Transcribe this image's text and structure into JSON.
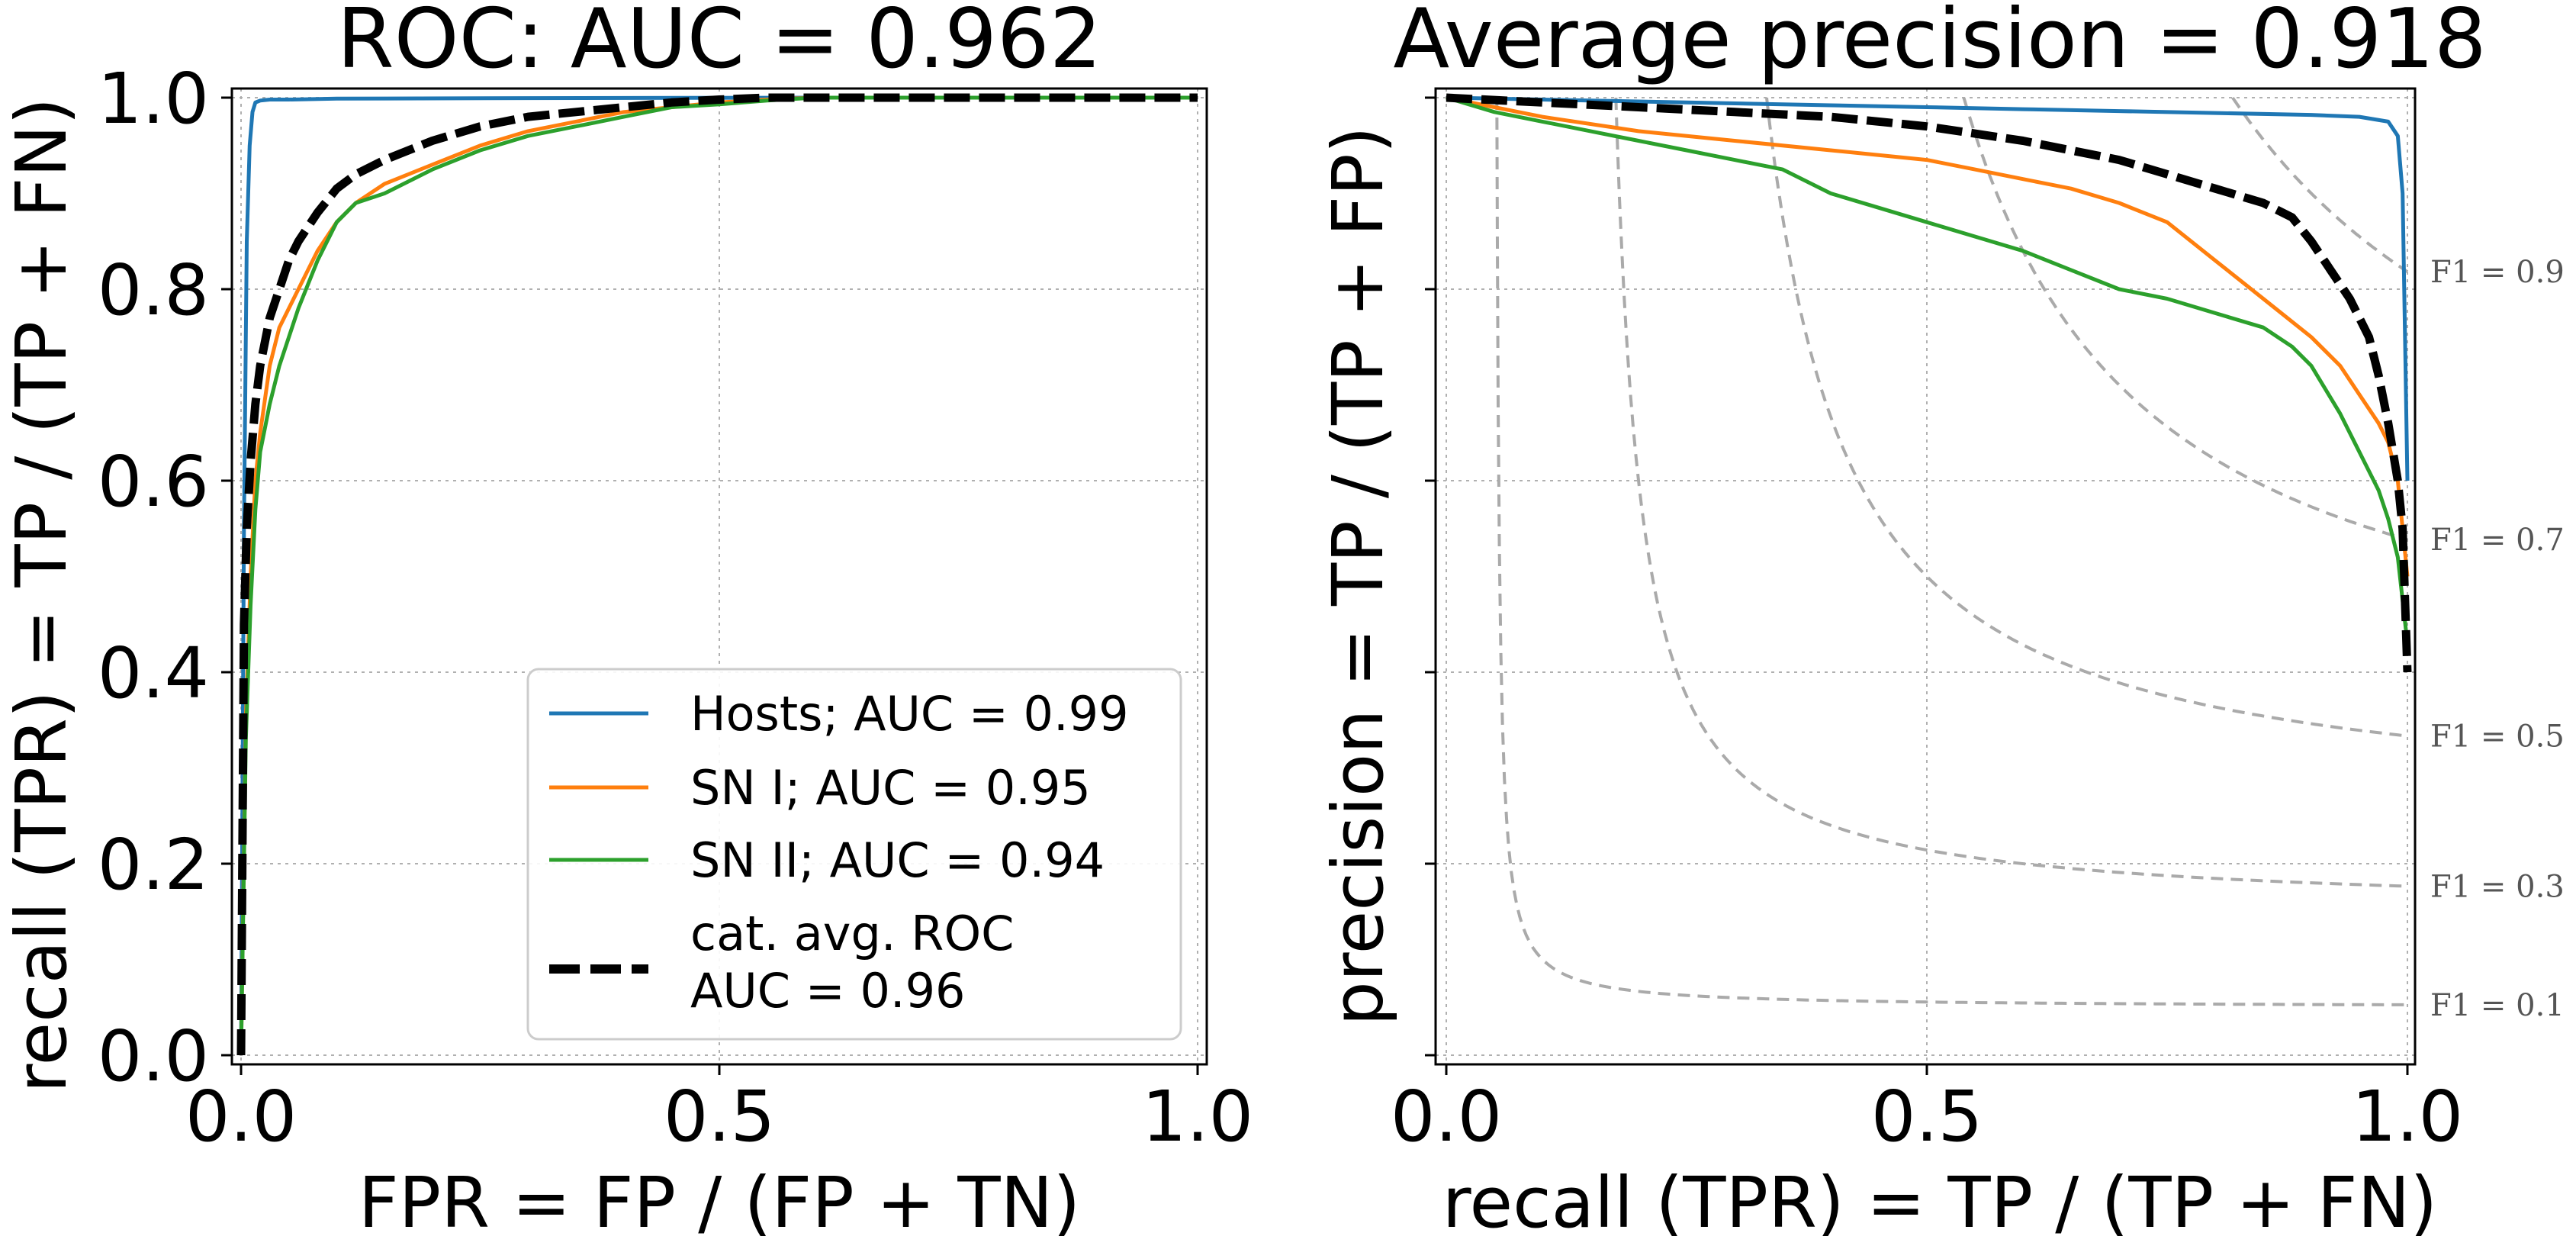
{
  "figure": {
    "title": "",
    "colors": {
      "hosts": "#1f77b4",
      "sn1": "#ff7f0e",
      "sn2": "#2ca02c",
      "avg": "#000000",
      "iso": "#aaaaaa",
      "grid": "#b0b0b0"
    }
  },
  "chart_data": [
    {
      "type": "line",
      "title": "ROC: AUC = 0.962",
      "xlabel": "FPR = FP / (FP + TN)",
      "ylabel": "recall (TPR) = TP / (TP + FN)",
      "xlim": [
        0,
        1
      ],
      "ylim": [
        0,
        1
      ],
      "xticks": [
        "0.0",
        "0.5",
        "1.0"
      ],
      "yticks": [
        "0.0",
        "0.2",
        "0.4",
        "0.6",
        "0.8",
        "1.0"
      ],
      "grid": true,
      "legend_position": "lower-right",
      "series": [
        {
          "name": "Hosts; AUC = 0.99",
          "color": "#1f77b4",
          "style": "solid",
          "x": [
            0,
            0.003,
            0.006,
            0.009,
            0.012,
            0.015,
            0.02,
            0.03,
            0.05,
            0.1,
            0.3,
            0.6,
            1.0
          ],
          "y": [
            0,
            0.55,
            0.85,
            0.95,
            0.985,
            0.995,
            0.997,
            0.998,
            0.998,
            0.999,
            0.9995,
            1.0,
            1.0
          ]
        },
        {
          "name": "SN I; AUC = 0.95",
          "color": "#ff7f0e",
          "style": "solid",
          "x": [
            0,
            0.005,
            0.01,
            0.015,
            0.02,
            0.03,
            0.04,
            0.05,
            0.06,
            0.08,
            0.1,
            0.12,
            0.15,
            0.2,
            0.25,
            0.3,
            0.35,
            0.4,
            0.45,
            0.5,
            0.55,
            0.6,
            0.8,
            1.0
          ],
          "y": [
            0,
            0.35,
            0.5,
            0.6,
            0.65,
            0.72,
            0.76,
            0.78,
            0.8,
            0.84,
            0.87,
            0.89,
            0.91,
            0.93,
            0.95,
            0.965,
            0.975,
            0.985,
            0.99,
            0.995,
            0.998,
            1.0,
            1.0,
            1.0
          ]
        },
        {
          "name": "SN II; AUC = 0.94",
          "color": "#2ca02c",
          "style": "solid",
          "x": [
            0,
            0.005,
            0.01,
            0.015,
            0.02,
            0.03,
            0.04,
            0.05,
            0.06,
            0.08,
            0.1,
            0.12,
            0.15,
            0.2,
            0.25,
            0.3,
            0.35,
            0.4,
            0.45,
            0.5,
            0.55,
            0.6,
            0.8,
            1.0
          ],
          "y": [
            0,
            0.33,
            0.47,
            0.57,
            0.63,
            0.68,
            0.72,
            0.75,
            0.78,
            0.83,
            0.87,
            0.89,
            0.9,
            0.925,
            0.945,
            0.96,
            0.97,
            0.98,
            0.99,
            0.993,
            0.997,
            1.0,
            1.0,
            1.0
          ]
        },
        {
          "name": "cat. avg. ROC\nAUC = 0.96",
          "color": "#000000",
          "style": "dashed",
          "x": [
            0,
            0.003,
            0.006,
            0.01,
            0.015,
            0.02,
            0.03,
            0.04,
            0.05,
            0.06,
            0.08,
            0.1,
            0.12,
            0.15,
            0.2,
            0.25,
            0.3,
            0.35,
            0.4,
            0.45,
            0.5,
            0.55,
            0.6,
            0.8,
            1.0
          ],
          "y": [
            0,
            0.45,
            0.55,
            0.62,
            0.68,
            0.72,
            0.77,
            0.8,
            0.83,
            0.85,
            0.88,
            0.905,
            0.92,
            0.935,
            0.955,
            0.97,
            0.98,
            0.985,
            0.99,
            0.995,
            0.998,
            1.0,
            1.0,
            1.0,
            1.0
          ]
        }
      ]
    },
    {
      "type": "line",
      "title": "Average precision = 0.918",
      "xlabel": "recall (TPR) = TP / (TP + FN)",
      "ylabel": "precision = TP / (TP + FP)",
      "xlim": [
        0,
        1
      ],
      "ylim": [
        0,
        1
      ],
      "xticks": [
        "0.0",
        "0.5",
        "1.0"
      ],
      "grid": true,
      "iso_f1": [
        0.1,
        0.3,
        0.5,
        0.7,
        0.9
      ],
      "iso_f1_labels": [
        "F1 = 0.1",
        "F1 = 0.3",
        "F1 = 0.5",
        "F1 = 0.7",
        "F1 = 0.9"
      ],
      "series": [
        {
          "color": "#1f77b4",
          "style": "solid",
          "x": [
            0,
            0.1,
            0.2,
            0.3,
            0.4,
            0.5,
            0.6,
            0.7,
            0.8,
            0.9,
            0.95,
            0.98,
            0.99,
            0.995,
            1.0
          ],
          "y": [
            1.0,
            0.998,
            0.996,
            0.994,
            0.992,
            0.99,
            0.988,
            0.986,
            0.984,
            0.982,
            0.98,
            0.975,
            0.96,
            0.9,
            0.6
          ]
        },
        {
          "color": "#ff7f0e",
          "style": "solid",
          "x": [
            0,
            0.05,
            0.1,
            0.2,
            0.3,
            0.4,
            0.5,
            0.55,
            0.6,
            0.65,
            0.7,
            0.75,
            0.8,
            0.85,
            0.9,
            0.93,
            0.95,
            0.97,
            0.98,
            0.99,
            1.0
          ],
          "y": [
            1.0,
            0.99,
            0.98,
            0.965,
            0.955,
            0.945,
            0.935,
            0.925,
            0.915,
            0.905,
            0.89,
            0.87,
            0.83,
            0.79,
            0.75,
            0.72,
            0.69,
            0.66,
            0.64,
            0.6,
            0.5
          ]
        },
        {
          "color": "#2ca02c",
          "style": "solid",
          "x": [
            0,
            0.05,
            0.1,
            0.15,
            0.2,
            0.25,
            0.3,
            0.35,
            0.4,
            0.45,
            0.5,
            0.55,
            0.6,
            0.65,
            0.7,
            0.75,
            0.8,
            0.85,
            0.88,
            0.9,
            0.93,
            0.95,
            0.97,
            0.98,
            0.99,
            1.0
          ],
          "y": [
            1.0,
            0.985,
            0.975,
            0.965,
            0.955,
            0.945,
            0.935,
            0.925,
            0.9,
            0.885,
            0.87,
            0.855,
            0.84,
            0.82,
            0.8,
            0.79,
            0.775,
            0.76,
            0.74,
            0.72,
            0.67,
            0.63,
            0.59,
            0.56,
            0.52,
            0.43
          ]
        },
        {
          "color": "#000000",
          "style": "dashed",
          "x": [
            0,
            0.1,
            0.2,
            0.3,
            0.4,
            0.5,
            0.6,
            0.7,
            0.75,
            0.8,
            0.85,
            0.88,
            0.9,
            0.92,
            0.94,
            0.96,
            0.97,
            0.98,
            0.99,
            0.995,
            1.0
          ],
          "y": [
            1.0,
            0.995,
            0.99,
            0.985,
            0.98,
            0.97,
            0.955,
            0.935,
            0.92,
            0.905,
            0.89,
            0.875,
            0.85,
            0.82,
            0.79,
            0.75,
            0.71,
            0.66,
            0.6,
            0.55,
            0.4
          ]
        }
      ]
    }
  ]
}
